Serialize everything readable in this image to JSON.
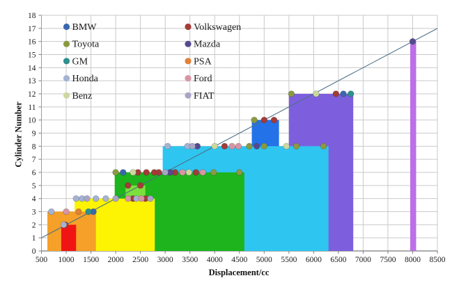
{
  "chart_data": {
    "type": "composite-bar-scatter",
    "title": "",
    "xlabel": "Displacement/cc",
    "ylabel": "Cylinder Number",
    "xlim": [
      500,
      8500
    ],
    "ylim": [
      0,
      18
    ],
    "grid": true,
    "legend_position": "top-left-inside-two-columns",
    "xticks": [
      500,
      1000,
      1500,
      2000,
      2500,
      3000,
      3500,
      4000,
      4500,
      5000,
      5500,
      6000,
      6500,
      7000,
      7500,
      8000,
      8500
    ],
    "yticks": [
      0,
      1,
      2,
      3,
      4,
      5,
      6,
      7,
      8,
      9,
      10,
      11,
      12,
      13,
      14,
      15,
      16,
      17,
      18
    ],
    "bars": [
      {
        "name": "violet-16cyl",
        "x0": 7950,
        "x1": 8070,
        "height": 16,
        "color": "#BC6FE6"
      },
      {
        "name": "purple-12cyl",
        "x0": 5500,
        "x1": 6800,
        "height": 12,
        "color": "#7D5FDE"
      },
      {
        "name": "blue-10cyl",
        "x0": 4750,
        "x1": 5300,
        "height": 10,
        "color": "#2472E8"
      },
      {
        "name": "cyan-8cyl",
        "x0": 2950,
        "x1": 6300,
        "height": 8,
        "color": "#2EC6F0"
      },
      {
        "name": "green-6cyl",
        "x0": 1980,
        "x1": 4600,
        "height": 6,
        "color": "#1DB41D"
      },
      {
        "name": "lightgreen-5cyl",
        "x0": 2200,
        "x1": 2600,
        "height": 5,
        "color": "#7CE03C"
      },
      {
        "name": "yellow-4cyl",
        "x0": 1170,
        "x1": 2790,
        "height": 4,
        "color": "#FCF403"
      },
      {
        "name": "orange-3cyl",
        "x0": 620,
        "x1": 1600,
        "height": 3,
        "color": "#F5A028"
      },
      {
        "name": "red-2cyl",
        "x0": 900,
        "x1": 1200,
        "height": 2,
        "color": "#F01414"
      }
    ],
    "trend_line": {
      "x1": 500,
      "y1": 1,
      "x2": 8500,
      "y2": 17,
      "color": "#4C7086"
    },
    "series": [
      {
        "name": "BMW",
        "color": "#3A68AE",
        "points": [
          [
            1550,
            3
          ],
          [
            2150,
            6
          ],
          [
            6600,
            12
          ]
        ]
      },
      {
        "name": "Volkswagen",
        "color": "#A33B38",
        "points": [
          [
            980,
            2
          ],
          [
            2350,
            4
          ],
          [
            2600,
            4
          ],
          [
            2250,
            5
          ],
          [
            2500,
            5
          ],
          [
            2450,
            6
          ],
          [
            2620,
            6
          ],
          [
            2780,
            6
          ],
          [
            2870,
            6
          ],
          [
            3200,
            6
          ],
          [
            3620,
            6
          ],
          [
            4200,
            8
          ],
          [
            5000,
            10
          ],
          [
            5200,
            10
          ],
          [
            6450,
            12
          ]
        ]
      },
      {
        "name": "Toyota",
        "color": "#8B9A40",
        "points": [
          [
            2000,
            6
          ],
          [
            3980,
            6
          ],
          [
            4500,
            6
          ],
          [
            4700,
            8
          ],
          [
            5000,
            8
          ],
          [
            5650,
            8
          ],
          [
            6200,
            8
          ],
          [
            4800,
            10
          ],
          [
            5550,
            12
          ]
        ]
      },
      {
        "name": "Mazda",
        "color": "#554A8F",
        "points": [
          [
            3100,
            6
          ],
          [
            3650,
            8
          ],
          [
            4850,
            8
          ],
          [
            8000,
            16
          ]
        ]
      },
      {
        "name": "GM",
        "color": "#2E8F8F",
        "points": [
          [
            1450,
            3
          ],
          [
            6750,
            12
          ]
        ]
      },
      {
        "name": "PSA",
        "color": "#E28138",
        "points": [
          [
            1250,
            3
          ]
        ]
      },
      {
        "name": "Honda",
        "color": "#A4B3D4",
        "points": [
          [
            700,
            3
          ],
          [
            950,
            2
          ],
          [
            1200,
            4
          ],
          [
            1320,
            4
          ],
          [
            1600,
            4
          ],
          [
            1800,
            4
          ],
          [
            2420,
            4
          ],
          [
            3050,
            8
          ],
          [
            3450,
            8
          ]
        ]
      },
      {
        "name": "Ford",
        "color": "#D895A4",
        "points": [
          [
            1000,
            3
          ],
          [
            2250,
            4
          ],
          [
            2520,
            4
          ],
          [
            3350,
            6
          ],
          [
            3760,
            6
          ],
          [
            4350,
            8
          ],
          [
            4480,
            8
          ]
        ]
      },
      {
        "name": "Benz",
        "color": "#CBD8A0",
        "points": [
          [
            2350,
            6
          ],
          [
            3480,
            6
          ],
          [
            4000,
            8
          ],
          [
            5450,
            8
          ],
          [
            6050,
            12
          ]
        ]
      },
      {
        "name": "FIAT",
        "color": "#A8A5C8",
        "points": [
          [
            1420,
            4
          ],
          [
            2000,
            4
          ],
          [
            2700,
            4
          ],
          [
            3000,
            6
          ],
          [
            3550,
            8
          ]
        ]
      }
    ],
    "legend_columns": [
      [
        "BMW",
        "Toyota",
        "GM",
        "Honda",
        "Benz"
      ],
      [
        "Volkswagen",
        "Mazda",
        "PSA",
        "Ford",
        "FIAT"
      ]
    ]
  }
}
